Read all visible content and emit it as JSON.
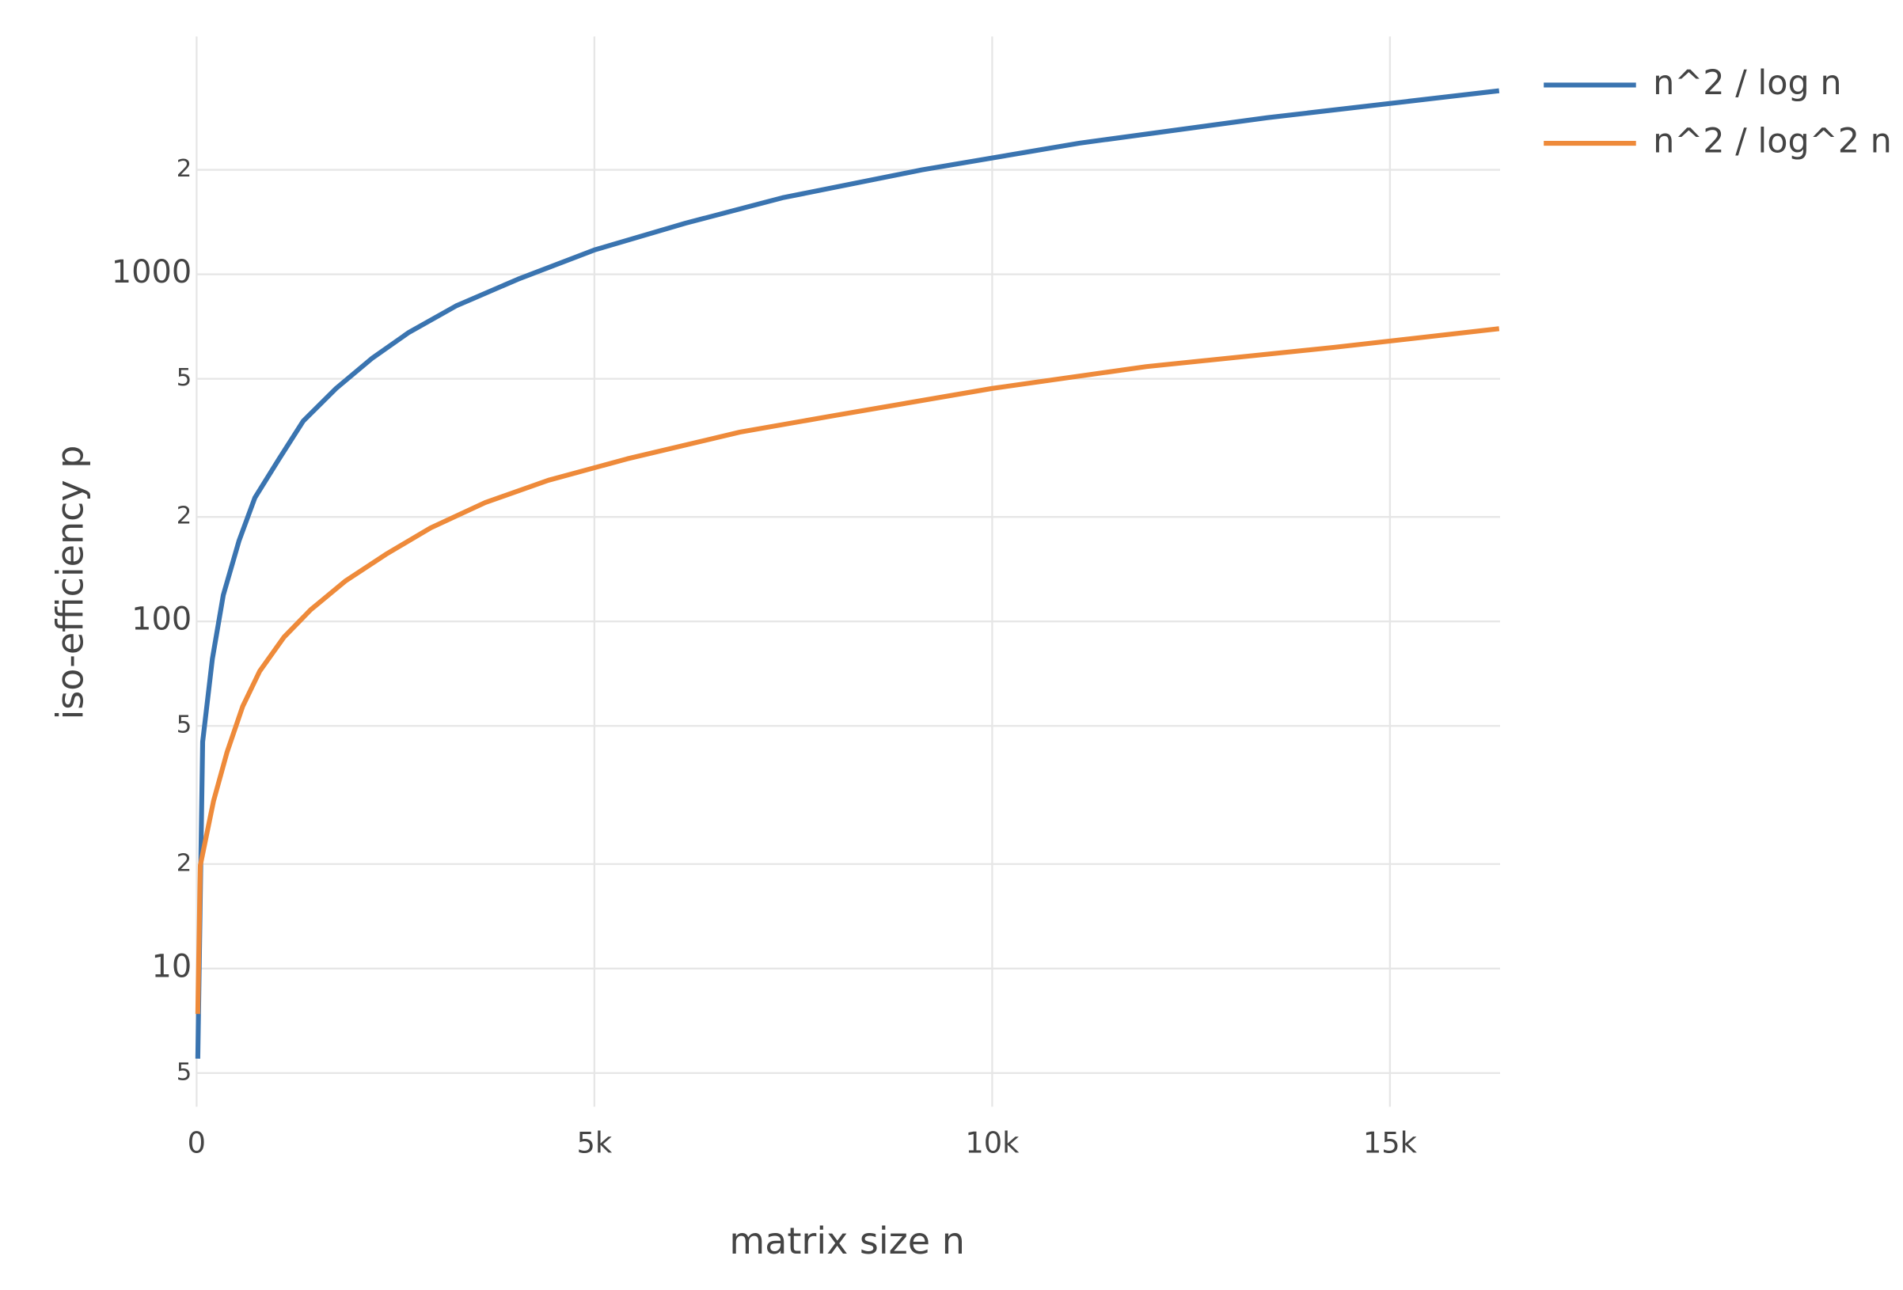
{
  "chart_data": {
    "type": "line",
    "xlabel": "matrix size n",
    "ylabel": "iso-efficiency p",
    "xlim": [
      0,
      16384
    ],
    "xticks": [
      0,
      {
        "value": 5000,
        "label": "5k"
      },
      {
        "value": 10000,
        "label": "10k"
      },
      {
        "value": 15000,
        "label": "15k"
      }
    ],
    "ylim": [
      4,
      4842
    ],
    "log_y": true,
    "yticks": [
      {
        "value": 5,
        "label": "5"
      },
      10,
      {
        "value": 20,
        "label": "2"
      },
      {
        "value": 50,
        "label": "5"
      },
      100,
      {
        "value": 200,
        "label": "2"
      },
      {
        "value": 500,
        "label": "5"
      },
      1000,
      {
        "value": 2000,
        "label": "2"
      }
    ],
    "grid": true,
    "legend": "outside-top-right",
    "series": [
      {
        "name": "n^2 / log n",
        "color": "#3a74b0",
        "x": [
          15,
          76,
          198,
          335,
          534,
          732,
          1037,
          1341,
          1753,
          2210,
          2668,
          3262,
          4040,
          5000,
          6143,
          7363,
          9116,
          11098,
          13460,
          16372
        ],
        "values": [
          5.5,
          45,
          78,
          119,
          171,
          227,
          294,
          378,
          469,
          574,
          680,
          811,
          968,
          1175,
          1403,
          1661,
          1999,
          2387,
          2826,
          3378
        ]
      },
      {
        "name": "n^2 / log^2 n",
        "color": "#ee8a3a",
        "x": [
          15,
          46,
          213,
          381,
          579,
          793,
          1098,
          1433,
          1875,
          2378,
          2942,
          3628,
          4421,
          5412,
          6829,
          8049,
          10000,
          11936,
          14299,
          16372
        ],
        "values": [
          7.4,
          19.8,
          30.4,
          41.9,
          56.9,
          71.9,
          90.1,
          108,
          131,
          156,
          186,
          220,
          255,
          294,
          351,
          393,
          469,
          542,
          616,
          697
        ]
      }
    ]
  }
}
